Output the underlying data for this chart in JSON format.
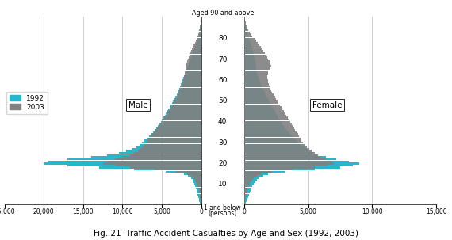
{
  "title": "Fig. 21  Traffic Accident Casualties by Age and Sex (1992, 2003)",
  "color_1992": "#29b6c8",
  "color_2003": "#808080",
  "male_1992": [
    200,
    250,
    300,
    380,
    450,
    520,
    600,
    700,
    750,
    900,
    1000,
    1100,
    1300,
    1700,
    2200,
    4500,
    8500,
    13000,
    17000,
    20000,
    19500,
    17000,
    14000,
    12000,
    10500,
    9500,
    8800,
    8200,
    7800,
    7500,
    7200,
    6900,
    6600,
    6300,
    6100,
    5900,
    5700,
    5500,
    5300,
    5100,
    5000,
    4800,
    4600,
    4500,
    4300,
    4200,
    4000,
    3900,
    3700,
    3600,
    3400,
    3300,
    3100,
    3000,
    2900,
    2800,
    2700,
    2600,
    2500,
    2400,
    2300,
    2200,
    2100,
    2000,
    1900,
    1800,
    1700,
    1600,
    1500,
    1400,
    1300,
    1200,
    1100,
    1000,
    900,
    800,
    650,
    550,
    450,
    370,
    300,
    240,
    190,
    160,
    130,
    105,
    85,
    65,
    50,
    35
  ],
  "male_2003": [
    80,
    100,
    130,
    160,
    200,
    250,
    300,
    370,
    430,
    530,
    640,
    750,
    950,
    1300,
    1800,
    3200,
    6000,
    9000,
    11000,
    12500,
    12000,
    11000,
    10000,
    9000,
    8500,
    8000,
    7800,
    7500,
    7200,
    7000,
    6800,
    6600,
    6400,
    6200,
    6000,
    5800,
    5600,
    5400,
    5200,
    5000,
    4900,
    4700,
    4500,
    4300,
    4200,
    4000,
    3900,
    3700,
    3600,
    3400,
    3300,
    3100,
    3000,
    2900,
    2800,
    2700,
    2600,
    2500,
    2400,
    2300,
    2200,
    2150,
    2100,
    2050,
    2000,
    1950,
    1900,
    1850,
    1800,
    1700,
    1600,
    1500,
    1400,
    1300,
    1200,
    1100,
    950,
    800,
    700,
    580,
    470,
    370,
    280,
    220,
    170,
    130,
    100,
    75,
    55,
    40
  ],
  "female_1992": [
    160,
    200,
    240,
    300,
    360,
    420,
    490,
    580,
    630,
    760,
    880,
    990,
    1150,
    1500,
    1900,
    3200,
    5500,
    7500,
    8500,
    9000,
    8200,
    7200,
    6400,
    5800,
    5400,
    5100,
    4900,
    4700,
    4500,
    4300,
    4100,
    3900,
    3800,
    3600,
    3500,
    3300,
    3200,
    3100,
    3000,
    2900,
    2800,
    2700,
    2600,
    2500,
    2400,
    2300,
    2200,
    2100,
    2000,
    1950,
    1850,
    1750,
    1680,
    1600,
    1530,
    1450,
    1380,
    1310,
    1240,
    1180,
    1120,
    1060,
    1000,
    980,
    960,
    940,
    920,
    890,
    860,
    830,
    800,
    760,
    720,
    680,
    640,
    600,
    550,
    490,
    430,
    370,
    310,
    255,
    205,
    168,
    138,
    112,
    90,
    70,
    52,
    38
  ],
  "female_2003": [
    60,
    75,
    95,
    120,
    150,
    190,
    230,
    290,
    340,
    420,
    510,
    610,
    760,
    1000,
    1350,
    2200,
    3800,
    5500,
    6500,
    7000,
    6800,
    6400,
    6000,
    5700,
    5500,
    5300,
    5100,
    4900,
    4700,
    4600,
    4500,
    4400,
    4300,
    4200,
    4100,
    4000,
    3900,
    3800,
    3700,
    3600,
    3500,
    3400,
    3300,
    3200,
    3100,
    3000,
    2900,
    2800,
    2700,
    2600,
    2500,
    2400,
    2300,
    2200,
    2100,
    2050,
    2000,
    1950,
    1900,
    1850,
    1800,
    1820,
    1850,
    1900,
    1980,
    2050,
    2100,
    2050,
    1980,
    1900,
    1800,
    1700,
    1600,
    1500,
    1400,
    1300,
    1180,
    1050,
    920,
    790,
    660,
    540,
    430,
    345,
    270,
    210,
    160,
    118,
    83,
    55
  ],
  "male_xlim": 25000,
  "female_xlim": 15000
}
